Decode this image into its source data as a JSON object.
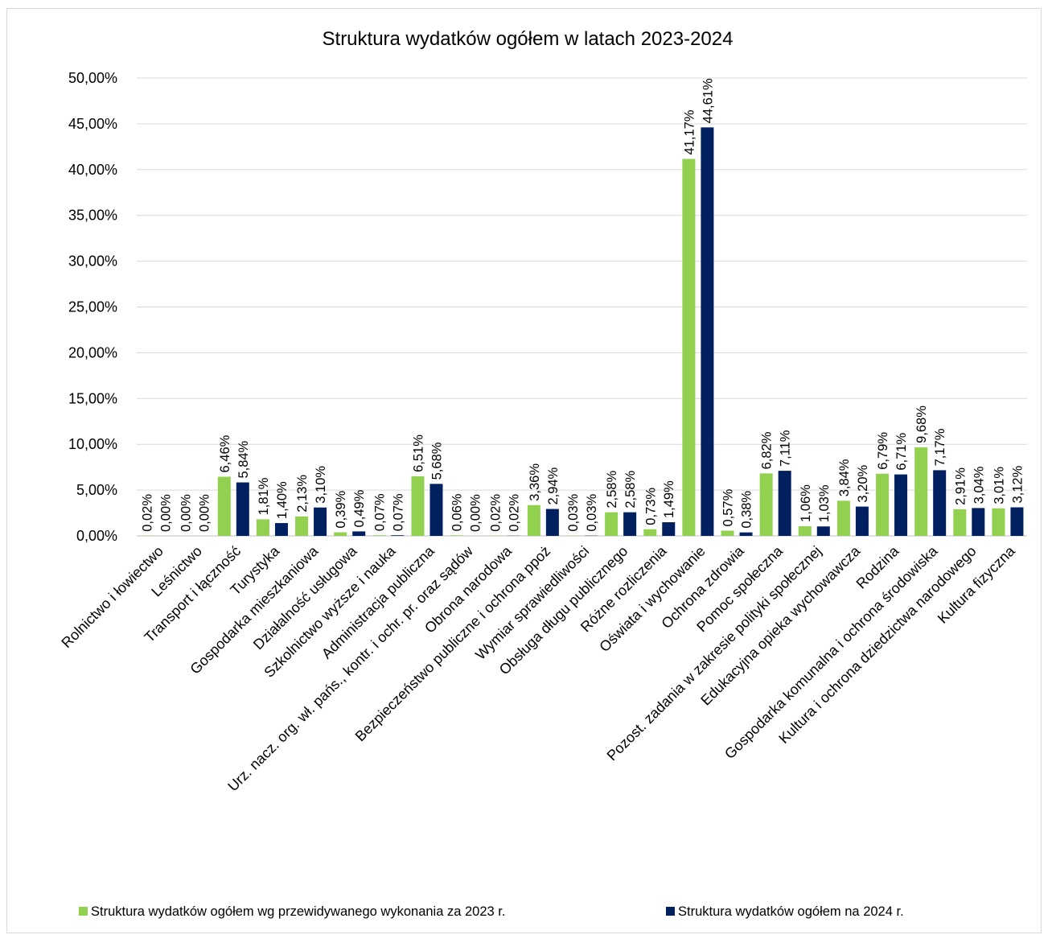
{
  "chart_data": {
    "type": "bar",
    "title": "Struktura wydatków ogółem w latach 2023-2024",
    "xlabel": "",
    "ylabel": "",
    "ylim": [
      0,
      50
    ],
    "y_ticks": [
      "0,00%",
      "5,00%",
      "10,00%",
      "15,00%",
      "20,00%",
      "25,00%",
      "30,00%",
      "35,00%",
      "40,00%",
      "45,00%",
      "50,00%"
    ],
    "grid": true,
    "legend_position": "bottom",
    "categories": [
      "Rolnictwo i łowiectwo",
      "Leśnictwo",
      "Transport i łączność",
      "Turystyka",
      "Gospodarka mieszkaniowa",
      "Działalność usługowa",
      "Szkolnictwo wyższe i nauka",
      "Administracja publiczna",
      "Urz. nacz. org. wł. pańs., kontr. i ochr. pr. oraz sądów",
      "Obrona narodowa",
      "Bezpieczeństwo publiczne i ochrona ppoż",
      "Wymiar sprawiedliwości",
      "Obsługa długu publicznego",
      "Różne rozliczenia",
      "Oświata i wychowanie",
      "Ochrona zdrowia",
      "Pomoc społeczna",
      "Pozost. zadania w zakresie polityki społecznej",
      "Edukacyjna opieka wychowawcza",
      "Rodzina",
      "Gospodarka komunalna i ochrona środowiska",
      "Kultura i ochrona dziedzictwa narodowego",
      "Kultura fizyczna"
    ],
    "series": [
      {
        "name": "Struktura wydatków ogółem wg przewidywanego wykonania za 2023 r.",
        "color": "#92d050",
        "values": [
          0.02,
          0.0,
          6.46,
          1.81,
          2.13,
          0.39,
          0.07,
          6.51,
          0.06,
          0.02,
          3.36,
          0.03,
          2.58,
          0.73,
          41.17,
          0.57,
          6.82,
          1.06,
          3.84,
          6.79,
          9.68,
          2.91,
          3.01
        ],
        "labels": [
          "0,02%",
          "0,00%",
          "6,46%",
          "1,81%",
          "2,13%",
          "0,39%",
          "0,07%",
          "6,51%",
          "0,06%",
          "0,02%",
          "3,36%",
          "0,03%",
          "2,58%",
          "0,73%",
          "41,17%",
          "0,57%",
          "6,82%",
          "1,06%",
          "3,84%",
          "6,79%",
          "9,68%",
          "2,91%",
          "3,01%"
        ]
      },
      {
        "name": "Struktura wydatków ogółem na 2024 r.",
        "color": "#002060",
        "values": [
          0.0,
          0.0,
          5.84,
          1.4,
          3.1,
          0.49,
          0.07,
          5.68,
          0.0,
          0.02,
          2.94,
          0.03,
          2.58,
          1.49,
          44.61,
          0.38,
          7.11,
          1.03,
          3.2,
          6.71,
          7.17,
          3.04,
          3.12
        ],
        "labels": [
          "0,00%",
          "0,00%",
          "5,84%",
          "1,40%",
          "3,10%",
          "0,49%",
          "0,07%",
          "5,68%",
          "0,00%",
          "0,02%",
          "2,94%",
          "0,03%",
          "2,58%",
          "1,49%",
          "44,61%",
          "0,38%",
          "7,11%",
          "1,03%",
          "3,20%",
          "6,71%",
          "7,17%",
          "3,04%",
          "3,12%"
        ]
      }
    ]
  }
}
